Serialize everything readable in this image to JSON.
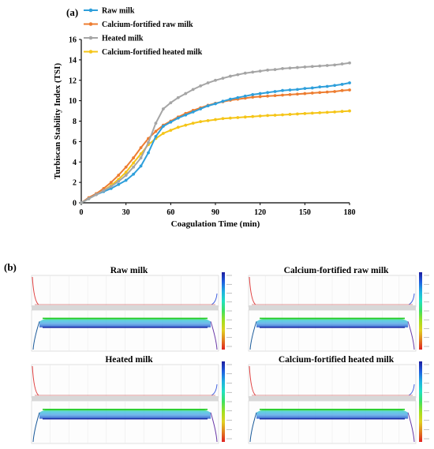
{
  "panel_a_label": "(a)",
  "panel_b_label": "(b)",
  "chart_data": {
    "type": "line",
    "title": "",
    "xlabel": "Coagulation Time (min)",
    "ylabel": "Turbiscan Stability Index (TSI)",
    "xlim": [
      0,
      180
    ],
    "ylim": [
      0,
      16
    ],
    "xticks": [
      "0",
      "30",
      "60",
      "90",
      "120",
      "150",
      "180"
    ],
    "yticks": [
      "0",
      "2",
      "4",
      "6",
      "8",
      "10",
      "12",
      "14",
      "16"
    ],
    "grid": false,
    "legend_position": "top-left",
    "x": [
      0,
      5,
      10,
      15,
      20,
      25,
      30,
      35,
      40,
      45,
      50,
      55,
      60,
      65,
      70,
      75,
      80,
      85,
      90,
      95,
      100,
      105,
      110,
      115,
      120,
      125,
      130,
      135,
      140,
      145,
      150,
      155,
      160,
      165,
      170,
      175,
      180
    ],
    "series": [
      {
        "name": "Raw milk",
        "color": "#2e9fdb",
        "values": [
          0,
          0.4,
          0.8,
          1.1,
          1.4,
          1.8,
          2.2,
          2.8,
          3.6,
          4.9,
          6.5,
          7.5,
          7.9,
          8.3,
          8.6,
          8.9,
          9.2,
          9.5,
          9.7,
          9.95,
          10.15,
          10.3,
          10.45,
          10.6,
          10.7,
          10.8,
          10.9,
          11.0,
          11.05,
          11.1,
          11.2,
          11.25,
          11.35,
          11.4,
          11.5,
          11.6,
          11.75
        ]
      },
      {
        "name": "Calcium-fortified raw milk",
        "color": "#ed7d31",
        "values": [
          0,
          0.5,
          0.9,
          1.4,
          2.0,
          2.7,
          3.5,
          4.4,
          5.4,
          6.3,
          7.0,
          7.6,
          8.0,
          8.4,
          8.75,
          9.05,
          9.3,
          9.55,
          9.75,
          9.9,
          10.05,
          10.15,
          10.25,
          10.35,
          10.4,
          10.45,
          10.5,
          10.55,
          10.6,
          10.65,
          10.7,
          10.75,
          10.8,
          10.85,
          10.9,
          11.0,
          11.05
        ]
      },
      {
        "name": "Heated milk",
        "color": "#a5a5a5",
        "values": [
          0,
          0.4,
          0.8,
          1.2,
          1.6,
          2.1,
          2.7,
          3.5,
          4.4,
          5.9,
          7.8,
          9.2,
          9.8,
          10.3,
          10.7,
          11.1,
          11.45,
          11.75,
          12.0,
          12.2,
          12.4,
          12.55,
          12.7,
          12.8,
          12.9,
          13.0,
          13.05,
          13.15,
          13.2,
          13.25,
          13.3,
          13.35,
          13.4,
          13.45,
          13.5,
          13.6,
          13.7
        ]
      },
      {
        "name": "Calcium-fortified heated milk",
        "color": "#f5c518",
        "values": [
          0,
          0.4,
          0.8,
          1.2,
          1.7,
          2.3,
          3.0,
          3.9,
          4.8,
          5.7,
          6.3,
          6.8,
          7.1,
          7.4,
          7.6,
          7.8,
          7.95,
          8.05,
          8.15,
          8.25,
          8.3,
          8.35,
          8.4,
          8.45,
          8.5,
          8.55,
          8.58,
          8.62,
          8.66,
          8.7,
          8.74,
          8.78,
          8.82,
          8.86,
          8.9,
          8.95,
          9.0
        ]
      }
    ]
  },
  "panel_b": {
    "subplots": [
      {
        "title": "Raw milk"
      },
      {
        "title": "Calcium-fortified raw milk"
      },
      {
        "title": "Heated milk"
      },
      {
        "title": "Calcium-fortified heated milk"
      }
    ],
    "colorbar_colors": [
      "#1d1d9e",
      "#1f5fe0",
      "#1fb0e0",
      "#20e0c0",
      "#40e060",
      "#a0e020",
      "#e0d020",
      "#e08020",
      "#e02020"
    ]
  }
}
